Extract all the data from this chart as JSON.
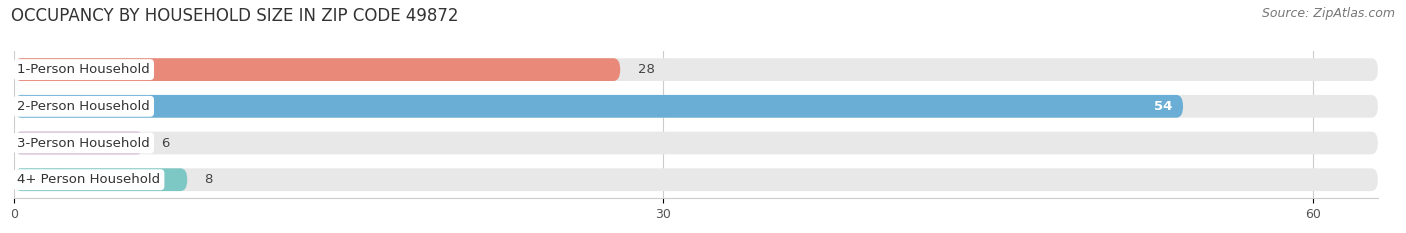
{
  "title": "OCCUPANCY BY HOUSEHOLD SIZE IN ZIP CODE 49872",
  "source_text": "Source: ZipAtlas.com",
  "categories": [
    "1-Person Household",
    "2-Person Household",
    "3-Person Household",
    "4+ Person Household"
  ],
  "values": [
    28,
    54,
    6,
    8
  ],
  "bar_colors": [
    "#E8897A",
    "#6AAED6",
    "#C4A8C8",
    "#7DC8C4"
  ],
  "bar_bg_color": "#E8E8E8",
  "xlim": [
    0,
    63
  ],
  "xticks": [
    0,
    30,
    60
  ],
  "title_fontsize": 12,
  "source_fontsize": 9,
  "label_fontsize": 9.5,
  "value_fontsize": 9.5,
  "bar_height": 0.62,
  "background_color": "#FFFFFF",
  "divider_color": "#FFFFFF",
  "value_inside_threshold": 50,
  "value_outside_color": "#444444",
  "value_inside_color": "#FFFFFF"
}
